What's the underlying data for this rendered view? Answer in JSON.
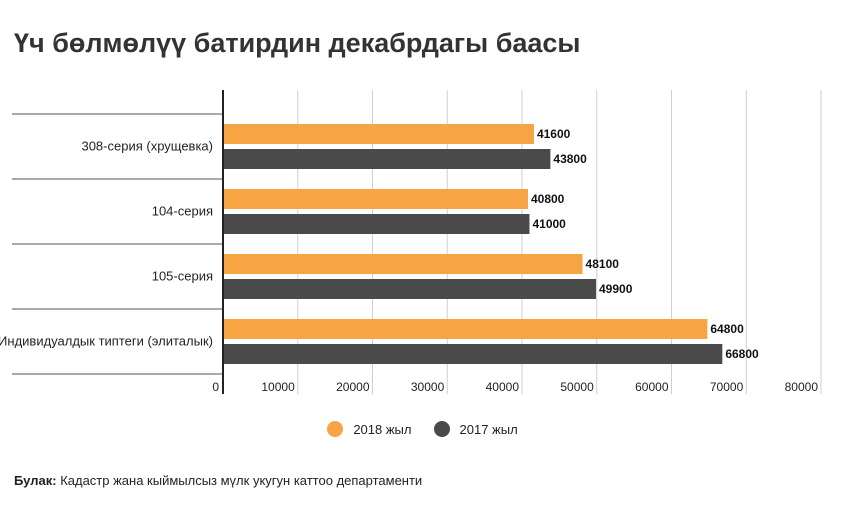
{
  "chart_data": {
    "type": "bar",
    "orientation": "horizontal",
    "title": "Үч бөлмөлүү батирдин декабрдагы баасы",
    "categories": [
      "308-серия (хрущевка)",
      "104-серия",
      "105-серия",
      "Индивидуалдык типтеги (элиталык)"
    ],
    "series": [
      {
        "name": "2018 жыл",
        "color": "#f7a444",
        "values": [
          41600,
          40800,
          48100,
          64800
        ]
      },
      {
        "name": "2017 жыл",
        "color": "#4a4a4a",
        "values": [
          43800,
          41000,
          49900,
          66800
        ]
      }
    ],
    "x_ticks": [
      "0",
      "10000",
      "20000",
      "30000",
      "40000",
      "50000",
      "60000",
      "70000",
      "80000"
    ],
    "xlim": [
      0,
      80000
    ],
    "grid": true,
    "legend": "bottom-center"
  },
  "source": {
    "label": "Булак:",
    "text": "Кадастр жана кыймылсыз мүлк укугун каттоо департаменти"
  }
}
